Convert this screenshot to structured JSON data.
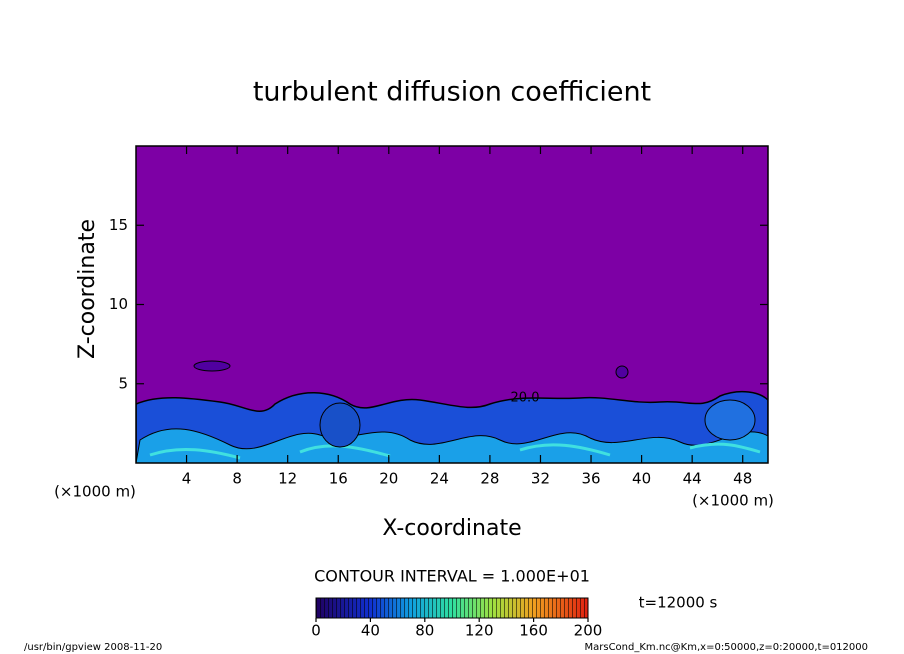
{
  "chart_data": {
    "type": "contour",
    "title": "turbulent diffusion coefficient",
    "x_label": "X-coordinate",
    "y_label": "Z-coordinate",
    "x_unit": "(×1000 m)",
    "xlim": [
      0,
      50
    ],
    "xticks": [
      4,
      8,
      12,
      16,
      20,
      24,
      28,
      32,
      36,
      40,
      44,
      48
    ],
    "ylim": [
      0,
      20
    ],
    "yticks": [
      5,
      10,
      15
    ],
    "contour_label": "20.0",
    "contour_interval": "CONTOUR INTERVAL = 1.000E+01",
    "time": "t=12000 s",
    "colorbar_lim": [
      0,
      200
    ],
    "colorbar_ticks": [
      0,
      40,
      80,
      120,
      160,
      200
    ],
    "footer_left": "/usr/bin/gpview  2008-11-20",
    "footer_right": "MarsCond_Km.nc@Km,x=0:50000,z=0:20000,t=012000"
  }
}
